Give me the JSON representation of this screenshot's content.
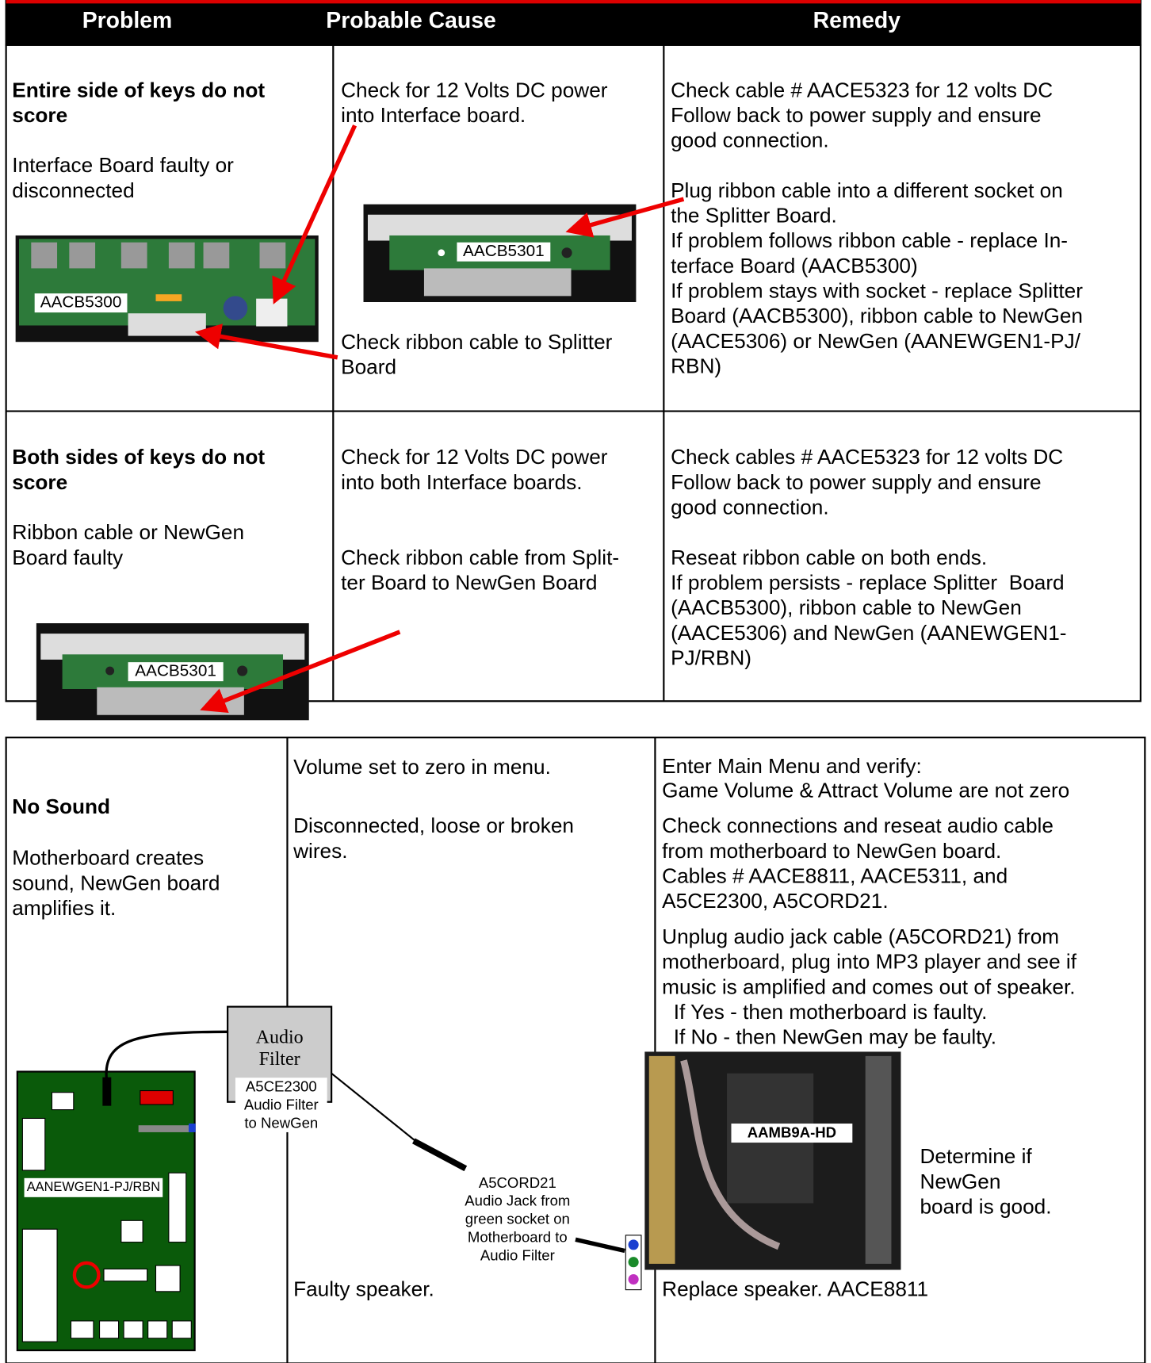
{
  "table1": {
    "headers": [
      "Problem",
      "Probable Cause",
      "Remedy"
    ],
    "rows": [
      {
        "problem_title": [
          "Entire side of keys do not",
          "score"
        ],
        "problem_desc": [
          "Interface Board faulty or",
          "disconnected"
        ],
        "board_label": "AACB5300",
        "causes": [
          [
            "Check for 12 Volts DC power",
            "into Interface board."
          ],
          [
            "Check ribbon cable to Splitter",
            "Board"
          ]
        ],
        "cause_board_label": "AACB5301",
        "remedies": [
          [
            "Check cable # AACE5323 for 12 volts DC",
            "Follow back to power supply and ensure",
            "good connection."
          ],
          [
            "Plug ribbon cable into a different socket on",
            "the Splitter Board.",
            "If problem follows ribbon cable - replace In-",
            "terface Board (AACB5300)",
            "If problem stays with socket - replace Splitter",
            "Board (AACB5300), ribbon cable to NewGen",
            "(AACE5306) or NewGen (AANEWGEN1-PJ/",
            "RBN)"
          ]
        ]
      },
      {
        "problem_title": [
          "Both sides of keys do not",
          "score"
        ],
        "problem_desc": [
          "Ribbon cable or NewGen",
          "Board faulty"
        ],
        "board_label": "AACB5301",
        "causes": [
          [
            "Check for 12 Volts DC power",
            "into both Interface boards."
          ],
          [
            "Check ribbon cable from Split-",
            "ter Board to NewGen Board"
          ]
        ],
        "remedies": [
          [
            "Check cables # AACE5323 for 12 volts DC",
            "Follow back to power supply and ensure",
            "good connection."
          ],
          [
            "Reseat ribbon cable on both ends.",
            "If problem persists - replace Splitter  Board",
            "(AACB5300), ribbon cable to NewGen",
            "(AACE5306) and NewGen (AANEWGEN1-",
            "PJ/RBN)"
          ]
        ]
      }
    ]
  },
  "table2": {
    "problem_title": [
      "No Sound"
    ],
    "problem_desc": [
      "Motherboard creates",
      "sound, NewGen board",
      "amplifies it."
    ],
    "causes": [
      [
        "Volume set to zero in menu."
      ],
      [
        "Disconnected, loose or broken",
        "wires."
      ],
      [
        "Faulty speaker."
      ]
    ],
    "remedies": [
      [
        "Enter Main Menu and verify:",
        "Game Volume & Attract Volume are not zero"
      ],
      [
        "Check connections and reseat audio cable",
        "from motherboard to NewGen board.",
        "Cables # AACE8811, AACE5311, and",
        "A5CE2300, A5CORD21."
      ],
      [
        "Unplug audio jack cable (A5CORD21) from",
        "motherboard, plug into MP3 player and see if",
        "music is amplified and comes out of speaker.",
        "  If Yes - then motherboard is faulty.",
        "  If No - then NewGen may be faulty."
      ],
      [
        "Determine if",
        "NewGen",
        "board is good."
      ],
      [
        "Replace speaker. AACE8811"
      ]
    ],
    "diagram": {
      "filter_title": [
        "Audio",
        "Filter"
      ],
      "filter_label": [
        "A5CE2300",
        "Audio Filter",
        "to NewGen"
      ],
      "cord_label": [
        "A5CORD21",
        "Audio Jack from",
        "green socket on",
        "Motherboard to",
        "Audio Filter"
      ],
      "newgen_label": "AANEWGEN1-PJ/RBN",
      "motherboard_label": "AAMB9A-HD"
    }
  }
}
